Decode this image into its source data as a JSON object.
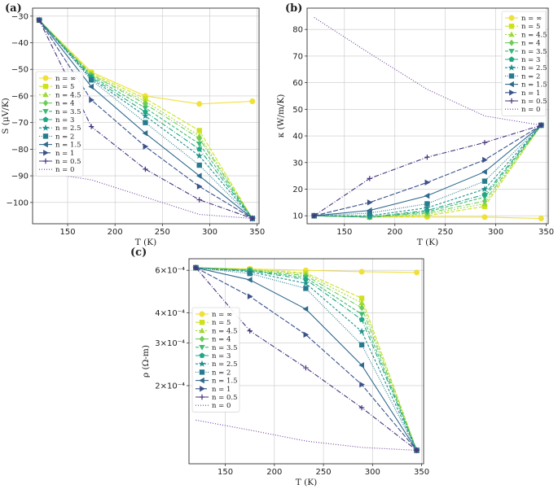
{
  "series_styles": [
    {
      "label": "n = ∞",
      "color": "#f0e03a",
      "dash": "",
      "marker": "circle"
    },
    {
      "label": "n = 5",
      "color": "#cde11d",
      "dash": "5,2",
      "marker": "square"
    },
    {
      "label": "n = 4.5",
      "color": "#9fd938",
      "dash": "2,2",
      "marker": "triangle-up"
    },
    {
      "label": "n = 4",
      "color": "#6ccd5a",
      "dash": "6,2,1,2",
      "marker": "diamond"
    },
    {
      "label": "n = 3.5",
      "color": "#3fbc73",
      "dash": "4,2",
      "marker": "triangle-down"
    },
    {
      "label": "n = 3",
      "color": "#22a785",
      "dash": "6,2,1,2",
      "marker": "pentagon"
    },
    {
      "label": "n = 2.5",
      "color": "#1f918c",
      "dash": "3,2",
      "marker": "star"
    },
    {
      "label": "n = 2",
      "color": "#277b8e",
      "dash": "1,1.5",
      "marker": "square"
    },
    {
      "label": "n = 1.5",
      "color": "#2f6a8d",
      "dash": "",
      "marker": "triangle-left"
    },
    {
      "label": "n = 1",
      "color": "#3b528b",
      "dash": "6,2",
      "marker": "triangle-right"
    },
    {
      "label": "n = 0.5",
      "color": "#47337e",
      "dash": "6,2,1,2",
      "marker": "plus"
    },
    {
      "label": "n = 0",
      "color": "#6a3d9a",
      "dash": "1,2",
      "marker": "none"
    }
  ],
  "chart_data": [
    {
      "id": "a",
      "panel_label": "(a)",
      "type": "line",
      "xlabel": "T (K)",
      "ylabel": "S (μV/K)",
      "xlim": [
        113,
        352
      ],
      "ylim": [
        -108,
        -27
      ],
      "yscale": "linear",
      "xticks": [
        150,
        200,
        250,
        300,
        350
      ],
      "yticks": [
        -30,
        -40,
        -50,
        -60,
        -70,
        -80,
        -90,
        -100
      ],
      "ytick_labels": [
        "−30",
        "−40",
        "−50",
        "−60",
        "−70",
        "−80",
        "−90",
        "−100"
      ],
      "legend_position": "left-center",
      "x": [
        120,
        175,
        232,
        289,
        345
      ],
      "series": [
        {
          "name": "n = ∞",
          "values": [
            -31.5,
            -51,
            -60,
            -63,
            -62
          ]
        },
        {
          "name": "n = 5",
          "values": [
            -31.5,
            -51.5,
            -61,
            -73,
            -106
          ]
        },
        {
          "name": "n = 4.5",
          "values": [
            -31.5,
            -52,
            -62,
            -75,
            -106
          ]
        },
        {
          "name": "n = 4",
          "values": [
            -31.5,
            -52,
            -63,
            -76,
            -106
          ]
        },
        {
          "name": "n = 3.5",
          "values": [
            -31.5,
            -52.5,
            -64.5,
            -78,
            -106
          ]
        },
        {
          "name": "n = 3",
          "values": [
            -31.5,
            -53,
            -66,
            -80,
            -106
          ]
        },
        {
          "name": "n = 2.5",
          "values": [
            -31.5,
            -53.5,
            -67.5,
            -82.5,
            -106
          ]
        },
        {
          "name": "n = 2",
          "values": [
            -31.5,
            -54,
            -70,
            -86,
            -106
          ]
        },
        {
          "name": "n = 1.5",
          "values": [
            -31.5,
            -56.5,
            -74,
            -90,
            -106
          ]
        },
        {
          "name": "n = 1",
          "values": [
            -31.5,
            -61.5,
            -79,
            -94,
            -106
          ]
        },
        {
          "name": "n = 0.5",
          "values": [
            -31.5,
            -71.5,
            -87.5,
            -99,
            -106
          ]
        },
        {
          "name": "n = 0",
          "values": [
            -88.5,
            -91.5,
            -98,
            -104.5,
            -106
          ]
        }
      ]
    },
    {
      "id": "b",
      "panel_label": "(b)",
      "type": "line",
      "xlabel": "T (K)",
      "ylabel": "κ (W/m/K)",
      "xlim": [
        113,
        352
      ],
      "ylim": [
        7,
        88
      ],
      "yscale": "linear",
      "xticks": [
        150,
        200,
        250,
        300,
        350
      ],
      "yticks": [
        10,
        20,
        30,
        40,
        50,
        60,
        70,
        80
      ],
      "ytick_labels": [
        "10",
        "20",
        "30",
        "40",
        "50",
        "60",
        "70",
        "80"
      ],
      "legend_position": "upper-right",
      "x": [
        120,
        175,
        232,
        289,
        345
      ],
      "series": [
        {
          "name": "n = ∞",
          "values": [
            10,
            9.5,
            9.5,
            9.5,
            9
          ]
        },
        {
          "name": "n = 5",
          "values": [
            10,
            9.5,
            10,
            13.5,
            44
          ]
        },
        {
          "name": "n = 4.5",
          "values": [
            10,
            9.5,
            10.5,
            14.5,
            44
          ]
        },
        {
          "name": "n = 4",
          "values": [
            10,
            9.5,
            11,
            15.5,
            44
          ]
        },
        {
          "name": "n = 3.5",
          "values": [
            10,
            9.5,
            11.5,
            17,
            44
          ]
        },
        {
          "name": "n = 3",
          "values": [
            10,
            9.5,
            12,
            18,
            44
          ]
        },
        {
          "name": "n = 2.5",
          "values": [
            10,
            10,
            13,
            20,
            44
          ]
        },
        {
          "name": "n = 2",
          "values": [
            10,
            11,
            14.5,
            23,
            44
          ]
        },
        {
          "name": "n = 1.5",
          "values": [
            10,
            12,
            17.5,
            26.5,
            44
          ]
        },
        {
          "name": "n = 1",
          "values": [
            10,
            15,
            22.5,
            31,
            44
          ]
        },
        {
          "name": "n = 0.5",
          "values": [
            10,
            24,
            32,
            37.5,
            44
          ]
        },
        {
          "name": "n = 0",
          "values": [
            84.5,
            71,
            57.5,
            47.5,
            44
          ]
        }
      ]
    },
    {
      "id": "c",
      "panel_label": "(c)",
      "type": "line",
      "xlabel": "T (K)",
      "ylabel": "ρ (Ω-m)",
      "xlim": [
        113,
        352
      ],
      "ylim": [
        9.5e-05,
        0.00067
      ],
      "yscale": "log",
      "xticks": [
        150,
        200,
        250,
        300,
        350
      ],
      "yticks": [
        0.0006,
        0.0004,
        0.0003,
        0.0002
      ],
      "ytick_labels": [
        "6×10⁻⁴",
        "4×10⁻⁴",
        "3×10⁻⁴",
        "2×10⁻⁴"
      ],
      "legend_position": "left-center",
      "x": [
        120,
        175,
        232,
        289,
        345
      ],
      "series": [
        {
          "name": "n = ∞",
          "values": [
            0.000615,
            0.000608,
            0.0006,
            0.000592,
            0.000588
          ]
        },
        {
          "name": "n = 5",
          "values": [
            0.000615,
            0.000606,
            0.000585,
            0.00046,
            0.000108
          ]
        },
        {
          "name": "n = 4.5",
          "values": [
            0.000615,
            0.000604,
            0.000578,
            0.00044,
            0.000108
          ]
        },
        {
          "name": "n = 4",
          "values": [
            0.000615,
            0.000602,
            0.00057,
            0.00042,
            0.000108
          ]
        },
        {
          "name": "n = 3.5",
          "values": [
            0.000615,
            0.0006,
            0.00056,
            0.000395,
            0.000108
          ]
        },
        {
          "name": "n = 3",
          "values": [
            0.000615,
            0.000598,
            0.00055,
            0.000375,
            0.000108
          ]
        },
        {
          "name": "n = 2.5",
          "values": [
            0.000615,
            0.000592,
            0.00053,
            0.000335,
            0.000108
          ]
        },
        {
          "name": "n = 2",
          "values": [
            0.000615,
            0.000582,
            0.000505,
            0.000295,
            0.000108
          ]
        },
        {
          "name": "n = 1.5",
          "values": [
            0.000615,
            0.000548,
            0.000415,
            0.000243,
            0.000108
          ]
        },
        {
          "name": "n = 1",
          "values": [
            0.000615,
            0.000468,
            0.000325,
            0.000202,
            0.000108
          ]
        },
        {
          "name": "n = 0.5",
          "values": [
            0.000615,
            0.000337,
            0.000237,
            0.000162,
            0.000108
          ]
        },
        {
          "name": "n = 0",
          "values": [
            0.000144,
            0.000131,
            0.000118,
            0.000111,
            0.000108
          ]
        }
      ]
    }
  ]
}
